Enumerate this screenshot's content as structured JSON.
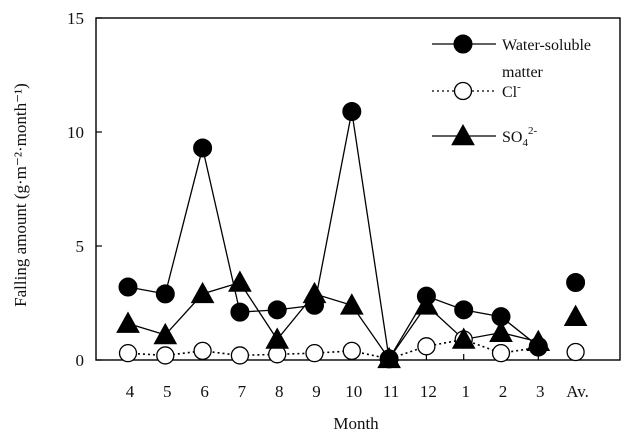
{
  "chart_data": {
    "type": "line",
    "xlabel": "Month",
    "ylabel": "Falling amount (g·m⁻²·month⁻¹)",
    "ylim": [
      0,
      15
    ],
    "yticks": [
      0,
      5,
      10,
      15
    ],
    "categories": [
      "4",
      "5",
      "6",
      "7",
      "8",
      "9",
      "10",
      "11",
      "12",
      "1",
      "2",
      "3",
      "Av."
    ],
    "series": [
      {
        "name": "Water-soluble matter",
        "marker": "filled-circle",
        "line": "solid",
        "color": "#000000",
        "values": [
          3.2,
          2.9,
          9.3,
          2.1,
          2.2,
          2.4,
          10.9,
          0.05,
          2.8,
          2.2,
          1.9,
          0.6,
          3.4
        ],
        "connect_through": 12
      },
      {
        "name": "Cl⁻",
        "marker": "open-circle",
        "line": "dotted",
        "color": "#000000",
        "values": [
          0.3,
          0.2,
          0.4,
          0.2,
          0.25,
          0.3,
          0.4,
          0.05,
          0.6,
          0.9,
          0.3,
          0.55,
          0.35
        ],
        "connect_through": 12
      },
      {
        "name": "SO₄²⁻",
        "marker": "filled-triangle",
        "line": "solid",
        "color": "#000000",
        "values": [
          1.6,
          1.1,
          2.9,
          3.4,
          0.9,
          2.9,
          2.4,
          0.05,
          2.4,
          0.9,
          1.2,
          0.8,
          1.9
        ],
        "connect_through": 12
      }
    ],
    "legend": {
      "position": "top-right",
      "entries": [
        {
          "line1": "Water-soluble",
          "line2": "matter"
        },
        {
          "text": "Cl",
          "sup": "-"
        },
        {
          "text": "SO",
          "sub": "4",
          "sup": "2-"
        }
      ]
    },
    "grid": false
  }
}
